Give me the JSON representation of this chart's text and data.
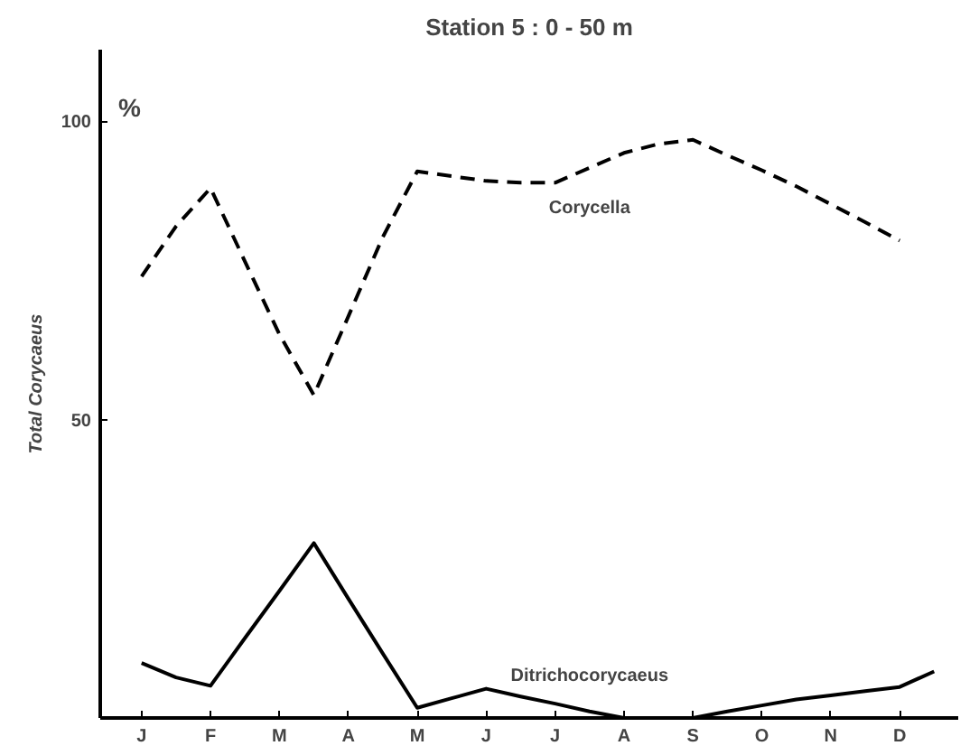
{
  "chart_data": {
    "type": "line",
    "title": "Station 5 : 0 - 50 m",
    "ylabel": "Total Corycaeus",
    "annotations": [
      "%"
    ],
    "categories": [
      "J",
      null,
      "F",
      null,
      "M",
      null,
      "A",
      null,
      "M",
      null,
      "J",
      null,
      "J",
      null,
      "A",
      null,
      "S",
      null,
      "O",
      null,
      "N",
      null,
      "D",
      null
    ],
    "ylim": [
      0,
      112
    ],
    "yticks": [
      50,
      100
    ],
    "grid": false,
    "legend": false,
    "marker": "none",
    "series": [
      {
        "name": "Corycella",
        "color": "#000000",
        "line_style": "dashed",
        "values": [
          74,
          82.4,
          88.8,
          76.5,
          64.3,
          54.1,
          67.3,
          80.6,
          91.6,
          90.8,
          90.0,
          89.7,
          89.7,
          92.2,
          94.7,
          96.2,
          96.9,
          94.3,
          91.8,
          89.1,
          86.1,
          83.1,
          80.0,
          null
        ]
      },
      {
        "name": "Ditrichocorycaeus",
        "color": "#000000",
        "line_style": "solid",
        "values": [
          9.2,
          6.8,
          5.4,
          13.4,
          21.3,
          29.3,
          20.0,
          10.8,
          1.7,
          3.3,
          4.9,
          3.6,
          2.4,
          1.1,
          0,
          0,
          0,
          1.1,
          2.1,
          3.1,
          3.8,
          4.5,
          5.2,
          7.8
        ]
      }
    ]
  }
}
